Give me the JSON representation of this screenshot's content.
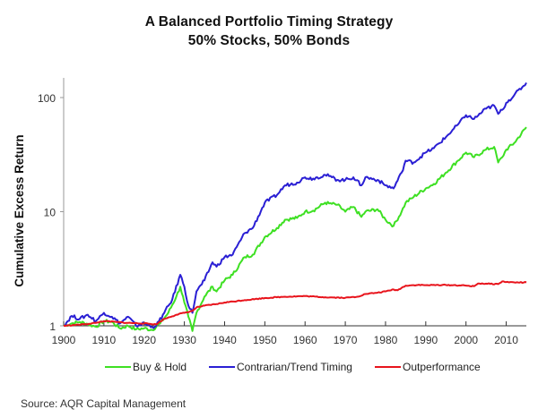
{
  "chart_data": {
    "type": "line",
    "title": "A Balanced Portfolio Timing Strategy",
    "subtitle": "50% Stocks, 50% Bonds",
    "xlabel": "",
    "ylabel": "Cumulative Excess Return",
    "yscale": "log",
    "ylim": [
      1,
      150
    ],
    "xlim": [
      1900,
      2015
    ],
    "xticks": [
      1900,
      1910,
      1920,
      1930,
      1940,
      1950,
      1960,
      1970,
      1980,
      1990,
      2000,
      2010
    ],
    "yticks": [
      1,
      10,
      100
    ],
    "ytick_labels": [
      "1",
      "10",
      "100"
    ],
    "grid": false,
    "legend_position": "bottom",
    "series": [
      {
        "name": "Buy & Hold",
        "color": "#3ee023",
        "x": [
          1900,
          1902,
          1904,
          1906,
          1908,
          1910,
          1912,
          1914,
          1916,
          1918,
          1920,
          1922,
          1924,
          1926,
          1928,
          1929,
          1930,
          1931,
          1932,
          1933,
          1935,
          1937,
          1938,
          1940,
          1942,
          1945,
          1947,
          1950,
          1953,
          1955,
          1958,
          1960,
          1962,
          1965,
          1966,
          1968,
          1970,
          1972,
          1974,
          1975,
          1978,
          1980,
          1982,
          1984,
          1985,
          1987,
          1990,
          1992,
          1995,
          1998,
          2000,
          2002,
          2005,
          2007,
          2008,
          2009,
          2010,
          2012,
          2015
        ],
        "values": [
          1.0,
          1.05,
          1.08,
          1.04,
          0.98,
          1.1,
          1.08,
          0.95,
          1.0,
          0.93,
          0.95,
          0.92,
          1.05,
          1.3,
          1.8,
          2.2,
          1.6,
          1.2,
          0.9,
          1.3,
          1.8,
          2.2,
          2.0,
          2.5,
          2.8,
          4.0,
          4.2,
          6.0,
          7.2,
          8.5,
          8.8,
          10.0,
          10.2,
          12.0,
          11.8,
          11.5,
          10.0,
          11.0,
          9.0,
          10.0,
          10.5,
          8.5,
          7.5,
          10.0,
          12.0,
          13.5,
          16.0,
          17.5,
          22.0,
          28.0,
          33.0,
          30.0,
          35.0,
          37.0,
          27.0,
          30.0,
          35.0,
          40.0,
          55.0
        ]
      },
      {
        "name": "Contrarian/Trend Timing",
        "color": "#2a1fd4",
        "x": [
          1900,
          1902,
          1904,
          1906,
          1908,
          1910,
          1912,
          1914,
          1916,
          1918,
          1920,
          1922,
          1923,
          1925,
          1927,
          1929,
          1930,
          1931,
          1932,
          1933,
          1935,
          1937,
          1938,
          1940,
          1942,
          1945,
          1947,
          1950,
          1953,
          1955,
          1958,
          1960,
          1962,
          1965,
          1966,
          1968,
          1970,
          1972,
          1974,
          1975,
          1978,
          1980,
          1982,
          1984,
          1985,
          1987,
          1990,
          1992,
          1995,
          1998,
          2000,
          2002,
          2005,
          2007,
          2008,
          2009,
          2010,
          2012,
          2015
        ],
        "values": [
          1.0,
          1.22,
          1.15,
          1.25,
          1.1,
          1.3,
          1.2,
          1.05,
          1.2,
          1.0,
          1.05,
          0.98,
          1.0,
          1.3,
          1.7,
          2.8,
          2.2,
          1.5,
          1.3,
          2.0,
          2.5,
          3.6,
          3.3,
          4.0,
          4.2,
          6.5,
          7.2,
          12.0,
          14.0,
          17.0,
          18.0,
          20.0,
          19.5,
          21.0,
          20.5,
          19.0,
          19.0,
          20.0,
          17.0,
          20.0,
          19.0,
          17.0,
          16.0,
          22.0,
          28.0,
          27.0,
          33.0,
          36.0,
          45.0,
          58.0,
          70.0,
          65.0,
          80.0,
          85.0,
          72.0,
          78.0,
          90.0,
          105.0,
          135.0
        ]
      },
      {
        "name": "Outperformance",
        "color": "#e8141c",
        "x": [
          1900,
          1905,
          1908,
          1910,
          1913,
          1916,
          1920,
          1923,
          1925,
          1928,
          1930,
          1932,
          1933,
          1935,
          1938,
          1940,
          1945,
          1950,
          1955,
          1960,
          1965,
          1970,
          1973,
          1975,
          1978,
          1980,
          1982,
          1983,
          1985,
          1988,
          1990,
          1995,
          2000,
          2002,
          2003,
          2005,
          2008,
          2009,
          2010,
          2012,
          2015
        ],
        "values": [
          1.0,
          1.03,
          1.06,
          1.1,
          1.08,
          1.06,
          1.05,
          1.03,
          1.15,
          1.25,
          1.3,
          1.35,
          1.45,
          1.5,
          1.55,
          1.6,
          1.68,
          1.75,
          1.8,
          1.82,
          1.78,
          1.76,
          1.8,
          1.9,
          1.95,
          2.0,
          2.08,
          2.05,
          2.25,
          2.28,
          2.27,
          2.28,
          2.25,
          2.22,
          2.35,
          2.34,
          2.32,
          2.45,
          2.42,
          2.4,
          2.4
        ]
      }
    ],
    "source": "Source: AQR Capital Management"
  }
}
